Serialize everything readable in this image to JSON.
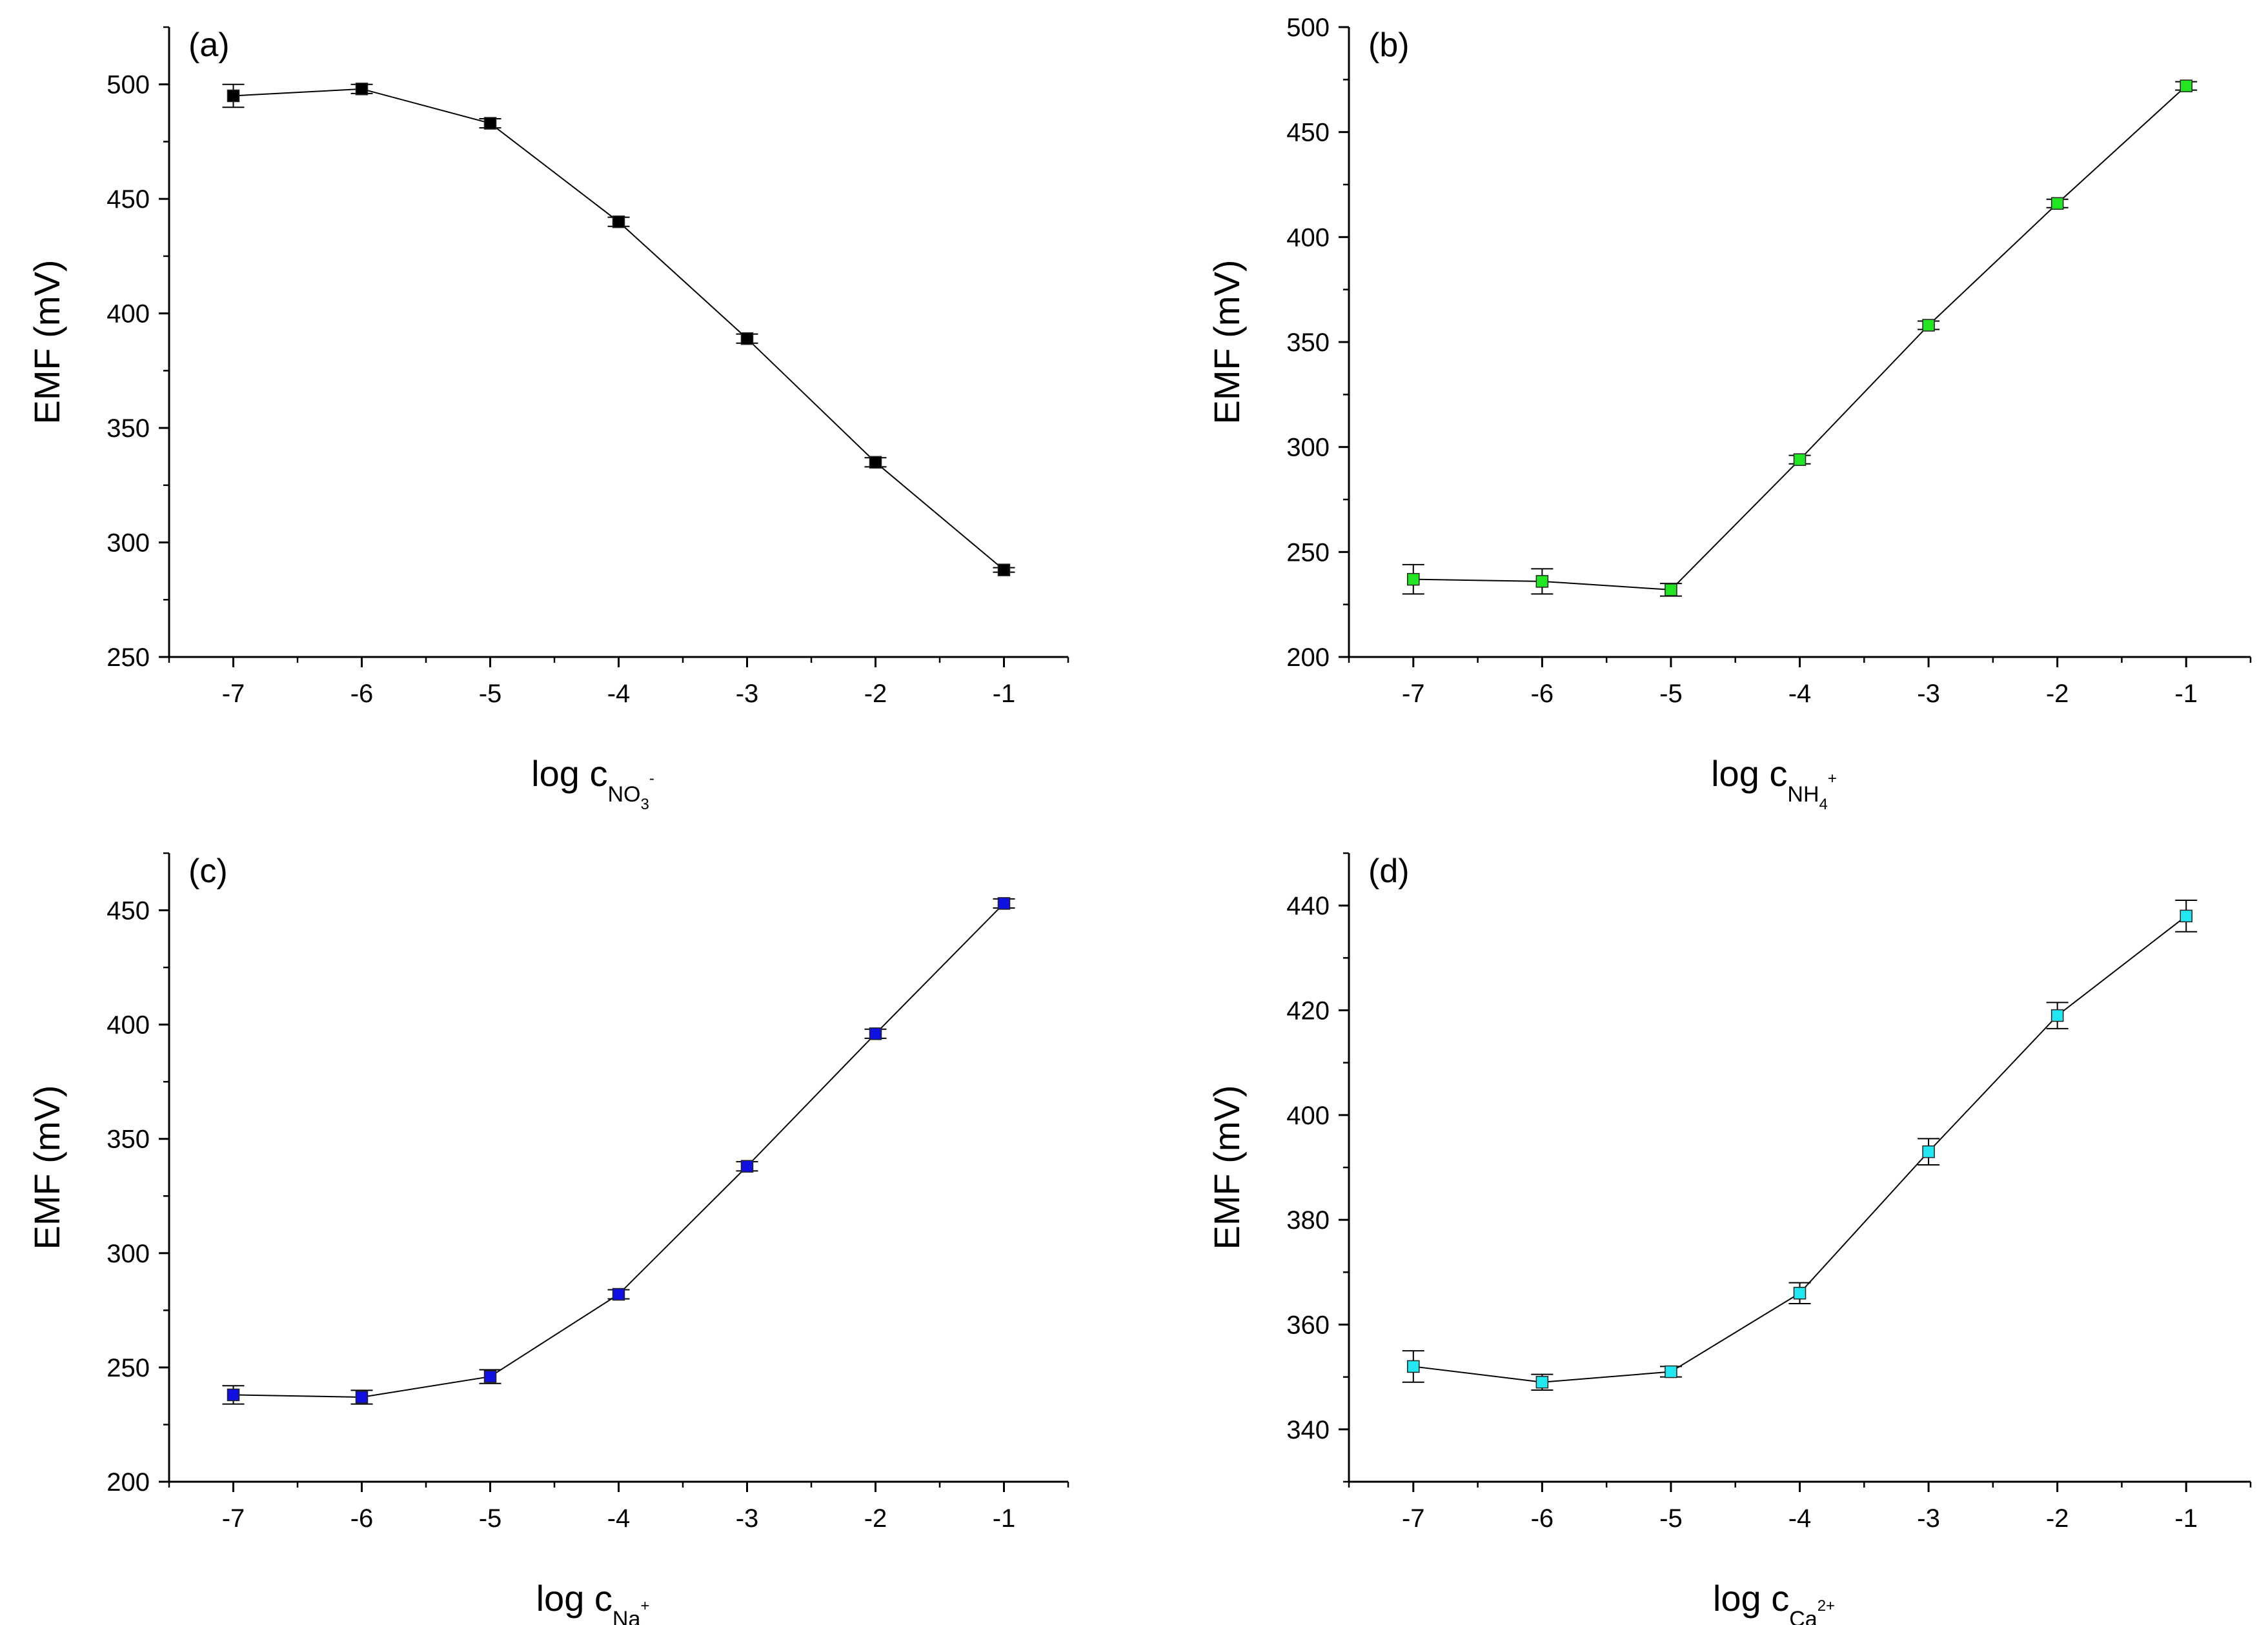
{
  "chart_data": [
    {
      "type": "line",
      "panel_label": "(a)",
      "xlabel": {
        "main": "log c",
        "sub": "NO",
        "sub2": "3",
        "sup": "-"
      },
      "ylabel": "EMF (mV)",
      "xlim": [
        -7.5,
        -0.5
      ],
      "ylim": [
        250,
        525
      ],
      "xticks": [
        -7,
        -6,
        -5,
        -4,
        -3,
        -2,
        -1
      ],
      "yticks": [
        250,
        300,
        350,
        400,
        450,
        500
      ],
      "color": "#000000",
      "series": [
        {
          "name": "EMF",
          "x": [
            -7,
            -6,
            -5,
            -4,
            -3,
            -2,
            -1
          ],
          "values": [
            495,
            498,
            483,
            440,
            389,
            335,
            288
          ],
          "errors": [
            5,
            2,
            2,
            2,
            2,
            2,
            1
          ]
        }
      ]
    },
    {
      "type": "line",
      "panel_label": "(b)",
      "xlabel": {
        "main": "log c",
        "sub": "NH",
        "sub2": "4",
        "sup": "+"
      },
      "ylabel": "EMF (mV)",
      "xlim": [
        -7.5,
        -0.5
      ],
      "ylim": [
        200,
        500
      ],
      "xticks": [
        -7,
        -6,
        -5,
        -4,
        -3,
        -2,
        -1
      ],
      "yticks": [
        200,
        250,
        300,
        350,
        400,
        450,
        500
      ],
      "color": "#22e622",
      "series": [
        {
          "name": "EMF",
          "x": [
            -7,
            -6,
            -5,
            -4,
            -3,
            -2,
            -1
          ],
          "values": [
            237,
            236,
            232,
            294,
            358,
            416,
            472
          ],
          "errors": [
            7,
            6,
            3,
            2,
            2,
            2,
            2
          ]
        }
      ]
    },
    {
      "type": "line",
      "panel_label": "(c)",
      "xlabel": {
        "main": "log c",
        "sub": "Na",
        "sub2": "",
        "sup": "+"
      },
      "ylabel": "EMF (mV)",
      "xlim": [
        -7.5,
        -0.5
      ],
      "ylim": [
        200,
        475
      ],
      "xticks": [
        -7,
        -6,
        -5,
        -4,
        -3,
        -2,
        -1
      ],
      "yticks": [
        200,
        250,
        300,
        350,
        400,
        450
      ],
      "color": "#1010e0",
      "series": [
        {
          "name": "EMF",
          "x": [
            -7,
            -6,
            -5,
            -4,
            -3,
            -2,
            -1
          ],
          "values": [
            238,
            237,
            246,
            282,
            338,
            396,
            453
          ],
          "errors": [
            4,
            3,
            3,
            2,
            2,
            2,
            2
          ]
        }
      ]
    },
    {
      "type": "line",
      "panel_label": "(d)",
      "xlabel": {
        "main": "log c",
        "sub": "Ca",
        "sub2": "",
        "sup": "2+"
      },
      "ylabel": "EMF (mV)",
      "xlim": [
        -7.5,
        -0.5
      ],
      "ylim": [
        330,
        450
      ],
      "xticks": [
        -7,
        -6,
        -5,
        -4,
        -3,
        -2,
        -1
      ],
      "yticks": [
        340,
        360,
        380,
        400,
        420,
        440
      ],
      "color": "#22e6f0",
      "series": [
        {
          "name": "EMF",
          "x": [
            -7,
            -6,
            -5,
            -4,
            -3,
            -2,
            -1
          ],
          "values": [
            352,
            349,
            351,
            366,
            393,
            419,
            438
          ],
          "errors": [
            3,
            1.5,
            1,
            2,
            2.5,
            2.5,
            3
          ]
        }
      ]
    }
  ]
}
